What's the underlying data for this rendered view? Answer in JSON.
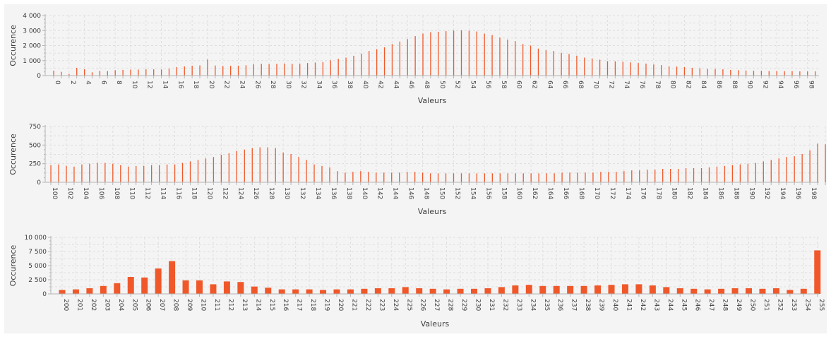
{
  "chart_data": [
    {
      "type": "bar",
      "xlabel": "Valeurs",
      "ylabel": "Occurence",
      "ylim": [
        0,
        4000
      ],
      "yticks": [
        0,
        1000,
        2000,
        3000,
        4000
      ],
      "grid": true,
      "x_start": 0,
      "label_every": 2,
      "values": [
        330,
        250,
        110,
        520,
        420,
        220,
        310,
        300,
        360,
        380,
        400,
        400,
        420,
        420,
        410,
        460,
        560,
        610,
        660,
        680,
        1070,
        670,
        640,
        650,
        660,
        690,
        750,
        780,
        760,
        780,
        800,
        780,
        780,
        840,
        870,
        900,
        1020,
        1120,
        1200,
        1320,
        1470,
        1640,
        1760,
        1880,
        2100,
        2270,
        2430,
        2630,
        2800,
        2890,
        2920,
        2960,
        3000,
        3020,
        2990,
        2940,
        2790,
        2700,
        2530,
        2400,
        2300,
        2100,
        2000,
        1800,
        1700,
        1640,
        1520,
        1440,
        1320,
        1200,
        1140,
        1060,
        960,
        950,
        920,
        880,
        840,
        800,
        740,
        700,
        620,
        600,
        560,
        520,
        480,
        440,
        440,
        420,
        380,
        360,
        340,
        320,
        320,
        300,
        300,
        290,
        290,
        280,
        280,
        280
      ]
    },
    {
      "type": "bar",
      "xlabel": "Valeurs",
      "ylabel": "Occurence",
      "ylim": [
        0,
        750
      ],
      "yticks": [
        0,
        250,
        500,
        750
      ],
      "grid": true,
      "x_start": 100,
      "label_every": 2,
      "values": [
        230,
        240,
        220,
        210,
        240,
        250,
        260,
        260,
        250,
        230,
        210,
        220,
        220,
        230,
        230,
        240,
        240,
        260,
        280,
        300,
        320,
        340,
        370,
        390,
        420,
        440,
        460,
        470,
        470,
        460,
        400,
        380,
        340,
        300,
        240,
        220,
        200,
        150,
        130,
        140,
        150,
        140,
        130,
        130,
        130,
        130,
        140,
        140,
        130,
        120,
        120,
        120,
        120,
        120,
        120,
        120,
        120,
        120,
        120,
        120,
        120,
        120,
        120,
        120,
        120,
        120,
        130,
        130,
        130,
        130,
        130,
        140,
        140,
        140,
        150,
        160,
        160,
        170,
        170,
        180,
        180,
        180,
        190,
        190,
        190,
        200,
        210,
        220,
        230,
        240,
        250,
        260,
        280,
        300,
        320,
        340,
        350,
        380,
        430,
        520,
        510
      ]
    },
    {
      "type": "bar",
      "xlabel": "Valeurs",
      "ylabel": "Occurence",
      "ylim": [
        0,
        10000
      ],
      "yticks": [
        0,
        2500,
        5000,
        7500,
        10000
      ],
      "grid": true,
      "x_start": 200,
      "label_every": 1,
      "values": [
        700,
        800,
        1000,
        1400,
        1900,
        3000,
        2900,
        4500,
        5800,
        2400,
        2400,
        1700,
        2200,
        2100,
        1300,
        1100,
        800,
        800,
        800,
        700,
        800,
        800,
        900,
        1000,
        1000,
        1200,
        1000,
        900,
        800,
        900,
        900,
        1000,
        1200,
        1500,
        1600,
        1400,
        1400,
        1400,
        1400,
        1500,
        1600,
        1700,
        1700,
        1500,
        1200,
        1000,
        900,
        800,
        900,
        1000,
        1000,
        900,
        1000,
        700,
        900,
        7700
      ]
    }
  ],
  "colors": {
    "bar": "#f0582a",
    "panel": "#f4f4f4",
    "grid": "#dedede",
    "axis": "#b5b5b5",
    "text": "#3c3c3c"
  }
}
